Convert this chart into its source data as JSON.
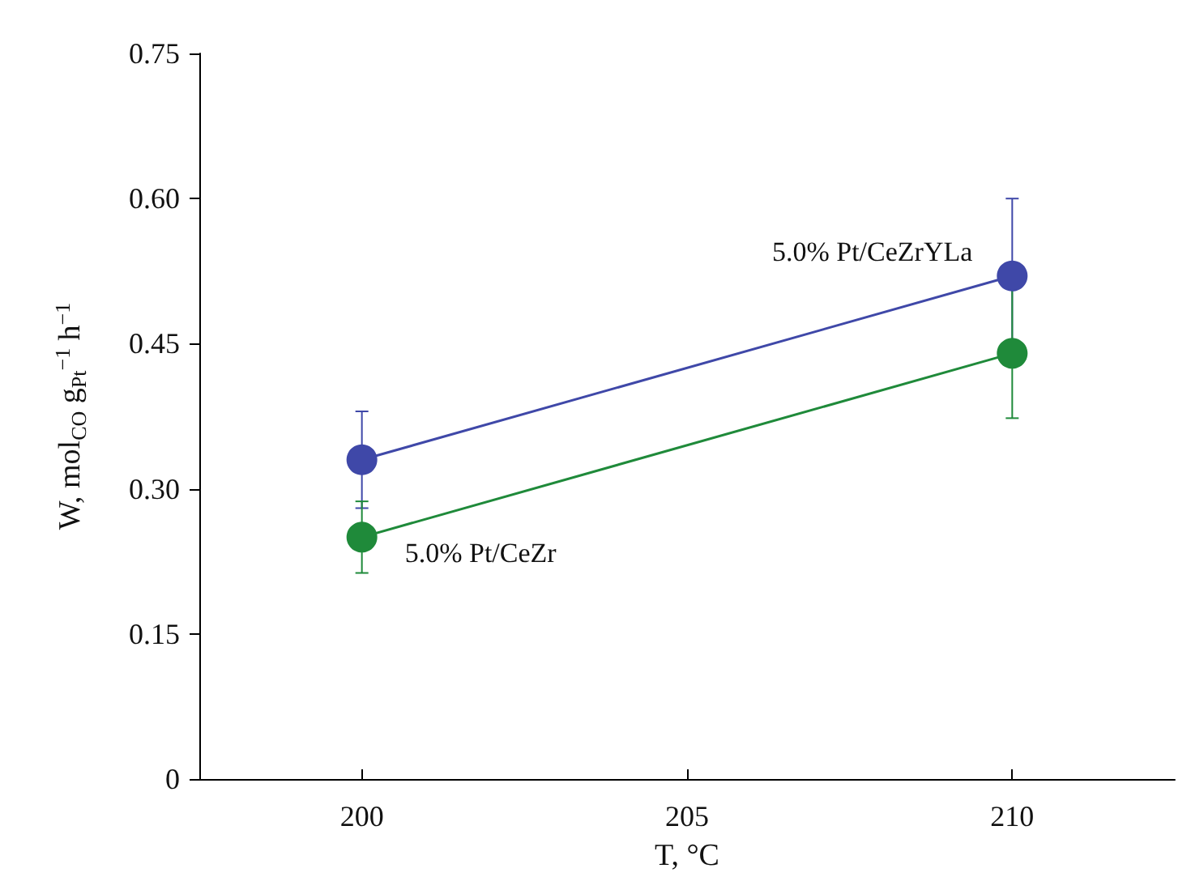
{
  "chart_data": {
    "type": "line",
    "xlabel": "T, °C",
    "ylabel": "W, mol$_{CO}$ g$_{Pt}$$^{−1}$ h$^{−1}$",
    "x": [
      200,
      210
    ],
    "series": [
      {
        "name": "5.0% Pt/CeZrYLa",
        "color": "#3f48a8",
        "values": [
          0.33,
          0.52
        ],
        "errors": [
          0.05,
          0.08
        ]
      },
      {
        "name": "5.0% Pt/CeZr",
        "color": "#1f8a3a",
        "values": [
          0.25,
          0.44
        ],
        "errors": [
          0.037,
          0.067
        ]
      }
    ],
    "xlim": [
      197.5,
      212.5
    ],
    "xticks": [
      200,
      205,
      210
    ],
    "ylim": [
      0,
      0.75
    ],
    "yticks": [
      0,
      {
        "value": 0.15,
        "label": "0.15"
      },
      {
        "value": 0.3,
        "label": "0.30"
      },
      {
        "value": 0.45,
        "label": "0.45"
      },
      {
        "value": 0.6,
        "label": "0.60"
      },
      {
        "value": 0.75,
        "label": "0.75"
      }
    ],
    "grid": false,
    "legend": false,
    "marker": "circle",
    "line_style": "solid"
  }
}
